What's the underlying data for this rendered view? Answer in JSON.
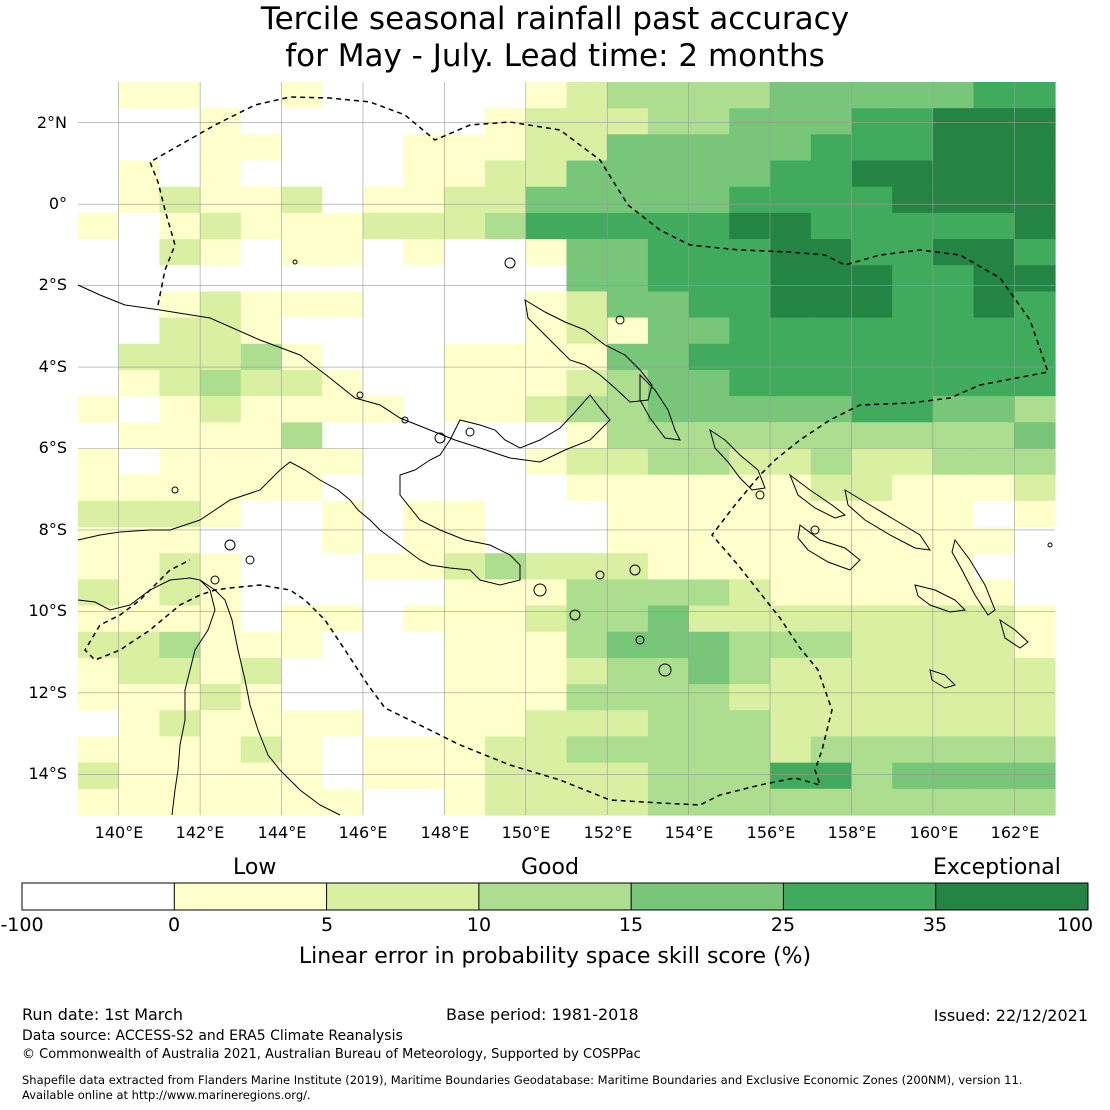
{
  "title": {
    "line1": "Tercile seasonal rainfall past accuracy",
    "line2": "for May - July. Lead time: 2 months"
  },
  "map": {
    "lon_range": [
      139,
      163
    ],
    "lat_range": [
      -15,
      3
    ],
    "lat_ticks": [
      "2°N",
      "0°",
      "2°S",
      "4°S",
      "6°S",
      "8°S",
      "10°S",
      "12°S",
      "14°S"
    ],
    "lon_ticks": [
      "140°E",
      "142°E",
      "144°E",
      "146°E",
      "148°E",
      "150°E",
      "152°E",
      "154°E",
      "156°E",
      "158°E",
      "160°E",
      "162°E"
    ],
    "gridlines": true,
    "coastline_color": "#000000",
    "boundary_style": "dashed",
    "skill_grid_note": "one character per 0.8 x 0.8 degree cell, top row first: 0 = below 0, 1 = 0-5, 2 = 5-10, 3 = 10-15, 4 = 15-25, 5 = 25-35, 6 = 35-100",
    "skill_grid": [
      "011001000001233334444455",
      "000100000012223344455666",
      "000110001112244444555666",
      "010100001122444445566666",
      "012112011224444455556666",
      "101211122235555566555556",
      "002101101001445556655665",
      "000000000000445556665566",
      "001211100001244556665565",
      "002210000001214455555555",
      "022231000111144555555555",
      "012322100111234455555555",
      "101211110112334444455443",
      "011113000000133333333334",
      "101111100001223322322333",
      "111111000000111111221112",
      "222100101100011111111101",
      "111000101100011111111110",
      "112100011232221111111100",
      "212100000111333321111110",
      "111101101112334222222221",
      "223111000111344433322221",
      "122120000111233432222222",
      "111210000111333322222222",
      "012111100112223332222222",
      "111121011122333332333333",
      "211111011122223335534444",
      "111111100122223333333333"
    ]
  },
  "legend": {
    "categories": [
      "Low",
      "Good",
      "Exceptional"
    ],
    "ticks": [
      "-100",
      "0",
      "5",
      "10",
      "15",
      "25",
      "35",
      "100"
    ],
    "colors": [
      "#ffffff",
      "#ffffcc",
      "#d9f0a3",
      "#addd8e",
      "#78c679",
      "#41ab5d",
      "#238443"
    ],
    "label": "Linear error in probability space skill score (%)"
  },
  "footer": {
    "run_date": "Run date: 1st March",
    "base_period": "Base period: 1981-2018",
    "issued": "Issued: 22/12/2021",
    "data_source": "Data source: ACCESS-S2 and ERA5 Climate Reanalysis",
    "copyright": "© Commonwealth of Australia 2021, Australian Bureau of Meteorology, Supported by COSPPac",
    "shapefile_line1": "Shapefile data extracted from Flanders Marine Institute (2019), Maritime Boundaries Geodatabase: Maritime Boundaries and Exclusive Economic Zones (200NM), version 11.",
    "shapefile_line2": "Available online at http://www.marineregions.org/."
  }
}
